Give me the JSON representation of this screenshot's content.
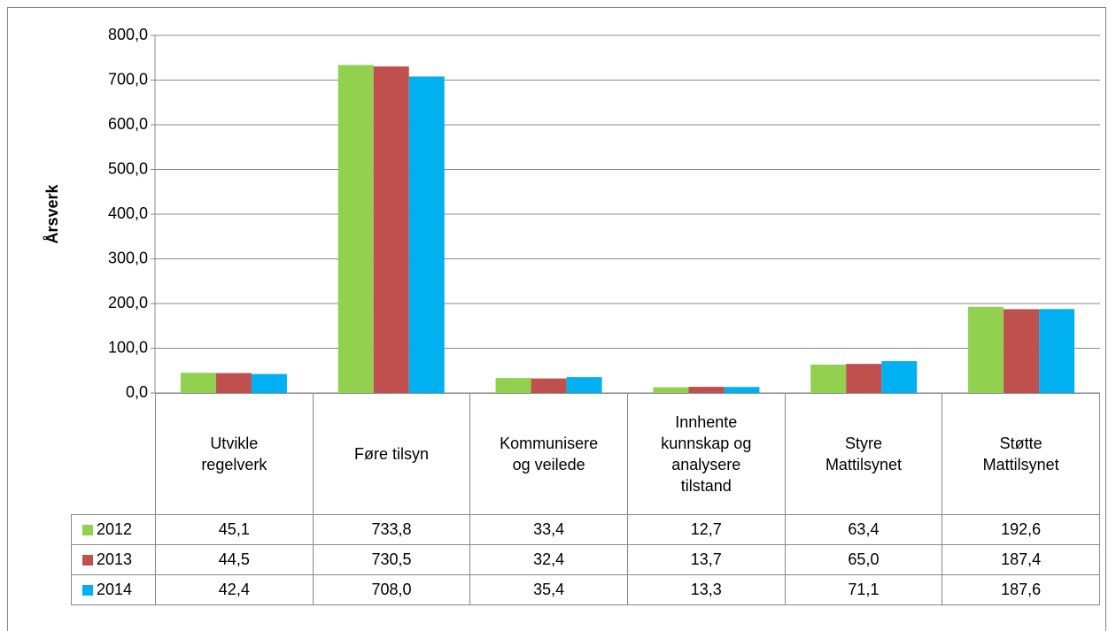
{
  "chart_data": {
    "type": "bar",
    "y_label": "Årsverk",
    "categories": [
      "Utvikle regelverk",
      "Føre tilsyn",
      "Kommunisere og veilede",
      "Innhente kunnskap og analysere tilstand",
      "Styre Mattilsynet",
      "Støtte Mattilsynet"
    ],
    "series": [
      {
        "name": "2012",
        "color": "#92d050",
        "values": [
          45.1,
          733.8,
          33.4,
          12.7,
          63.4,
          192.6
        ],
        "value_labels": [
          "45,1",
          "733,8",
          "33,4",
          "12,7",
          "63,4",
          "192,6"
        ]
      },
      {
        "name": "2013",
        "color": "#c0504d",
        "values": [
          44.5,
          730.5,
          32.4,
          13.7,
          65.0,
          187.4
        ],
        "value_labels": [
          "44,5",
          "730,5",
          "32,4",
          "13,7",
          "65,0",
          "187,4"
        ]
      },
      {
        "name": "2014",
        "color": "#00b0f0",
        "values": [
          42.4,
          708.0,
          35.4,
          13.3,
          71.1,
          187.6
        ],
        "value_labels": [
          "42,4",
          "708,0",
          "35,4",
          "13,3",
          "71,1",
          "187,6"
        ]
      }
    ],
    "ylim": [
      0,
      800
    ],
    "yticks": [
      {
        "value": 0,
        "label": "0,0"
      },
      {
        "value": 100,
        "label": "100,0"
      },
      {
        "value": 200,
        "label": "200,0"
      },
      {
        "value": 300,
        "label": "300,0"
      },
      {
        "value": 400,
        "label": "400,0"
      },
      {
        "value": 500,
        "label": "500,0"
      },
      {
        "value": 600,
        "label": "600,0"
      },
      {
        "value": 700,
        "label": "700,0"
      },
      {
        "value": 800,
        "label": "800,0"
      }
    ],
    "grid": true
  }
}
